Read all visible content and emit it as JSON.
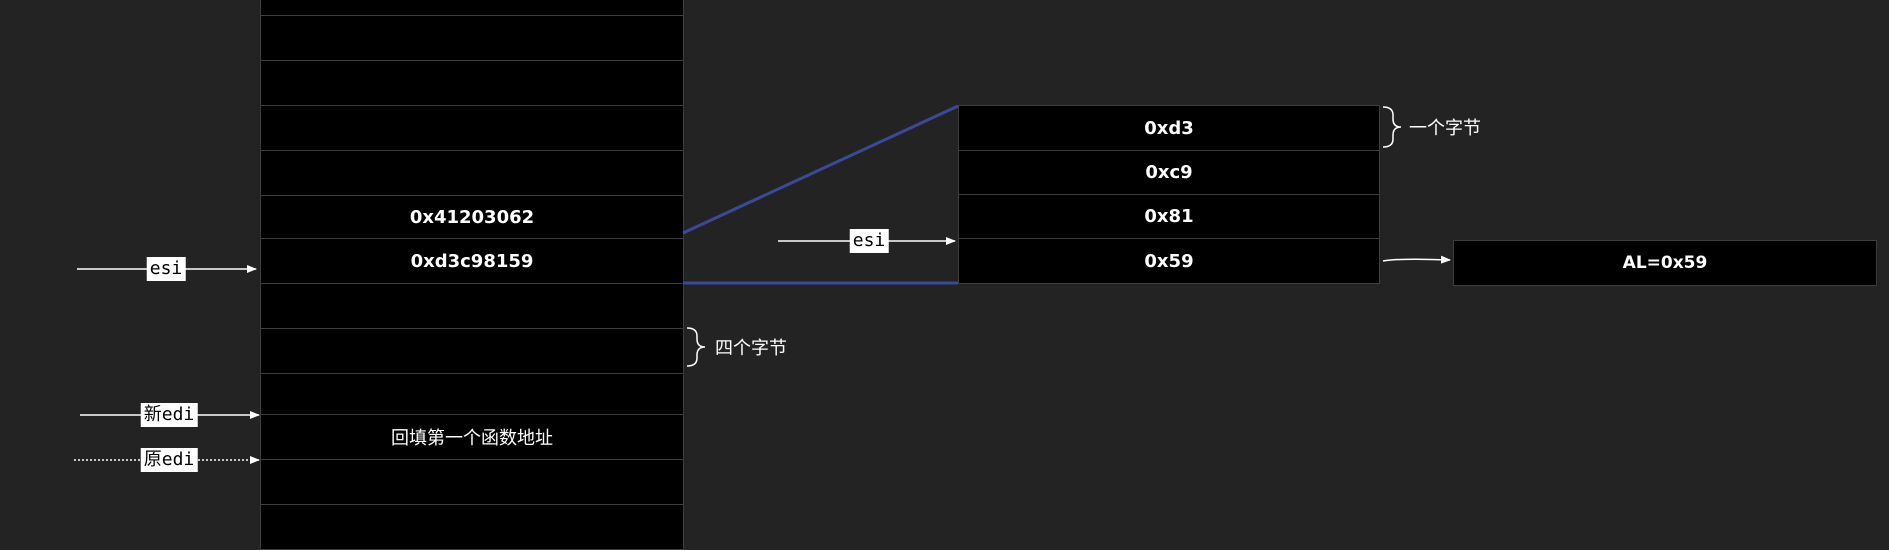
{
  "memory": {
    "cells": [
      "",
      "",
      "",
      "",
      "0x41203062",
      "0xd3c98159",
      "",
      "",
      "",
      "回填第一个函数地址",
      "",
      ""
    ],
    "brace_label": "四个字节",
    "pointers": {
      "esi": "esi",
      "new_edi": "新edi",
      "old_edi": "原edi"
    }
  },
  "bytes": {
    "cells": [
      "0xd3",
      "0xc9",
      "0x81",
      "0x59"
    ],
    "brace_label": "一个字节",
    "esi": "esi"
  },
  "result": {
    "text": "AL=0x59"
  },
  "colors": {
    "background": "#232323",
    "cell_fill": "#000000",
    "cell_border": "#3c3c3c",
    "zoom_line": "#3a4a9a",
    "arrow": "#ffffff"
  }
}
